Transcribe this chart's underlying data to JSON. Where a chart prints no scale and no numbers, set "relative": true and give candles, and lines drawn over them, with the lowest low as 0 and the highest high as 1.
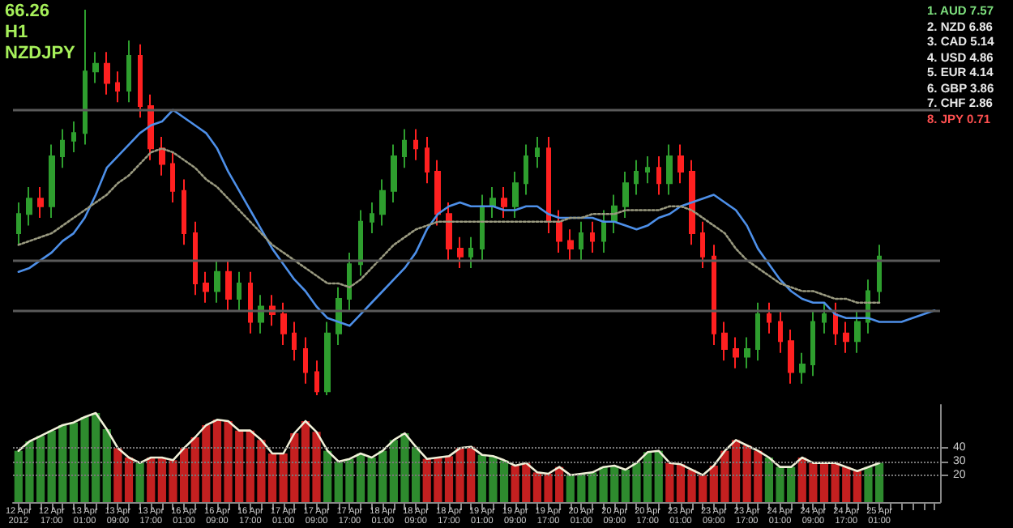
{
  "chart_data": [
    {
      "type": "candlestick",
      "title": "66.26",
      "subtitle": "H1",
      "relative": true,
      "tick_labels": false,
      "grid": false,
      "annotations": [
        "NZDJPY",
        "1. AUD 7.57",
        "2. NZD 6.86",
        "3. CAD 5.14",
        "4. USD 4.86",
        "5. EUR 4.14",
        "6. GBP 3.86",
        "7. CHF 2.86",
        "8. JPY 0.71"
      ],
      "categories": [
        "12 Apr 2012",
        null,
        null,
        "12 Apr 17:00",
        null,
        null,
        "13 Apr 01:00",
        null,
        null,
        "13 Apr 09:00",
        null,
        null,
        "13 Apr 17:00",
        null,
        null,
        "16 Apr 01:00",
        null,
        null,
        "16 Apr 09:00",
        null,
        null,
        "16 Apr 17:00",
        null,
        null,
        "17 Apr 01:00",
        null,
        null,
        "17 Apr 09:00",
        null,
        null,
        "17 Apr 17:00",
        null,
        null,
        "18 Apr 01:00",
        null,
        null,
        "18 Apr 09:00",
        null,
        null,
        "18 Apr 17:00",
        null,
        null,
        "19 Apr 01:00",
        null,
        null,
        "19 Apr 09:00",
        null,
        null,
        "19 Apr 17:00",
        null,
        null,
        "20 Apr 01:00",
        null,
        null,
        "20 Apr 09:00",
        null,
        null,
        "20 Apr 17:00",
        null,
        null,
        "23 Apr 01:00",
        null,
        null,
        "23 Apr 09:00",
        null,
        null,
        "23 Apr 17:00",
        null,
        null,
        "24 Apr 01:00",
        null,
        null,
        "24 Apr 09:00",
        null,
        null,
        "24 Apr 17:00",
        null,
        null,
        "25 Apr 01:00",
        null,
        null,
        null,
        null,
        null
      ],
      "ref_lines": [
        {
          "axis": "y",
          "value": 0.74,
          "color": "#5a5a5a"
        },
        {
          "axis": "y",
          "value": 0.35,
          "color": "#5a5a5a"
        },
        {
          "axis": "y",
          "value": 0.22,
          "color": "#5a5a5a"
        }
      ],
      "series": [
        {
          "ohlc": [
            [
              0.42,
              0.5,
              0.39,
              0.47
            ],
            [
              0.47,
              0.54,
              0.44,
              0.51
            ],
            [
              0.51,
              0.54,
              0.46,
              0.49
            ],
            [
              0.49,
              0.65,
              0.46,
              0.62
            ],
            [
              0.62,
              0.69,
              0.59,
              0.66
            ],
            [
              0.66,
              0.71,
              0.63,
              0.68
            ],
            [
              0.68,
              1,
              0.65,
              0.84
            ],
            [
              0.84,
              0.89,
              0.81,
              0.86
            ],
            [
              0.86,
              0.89,
              0.78,
              0.81
            ],
            [
              0.81,
              0.84,
              0.76,
              0.79
            ],
            [
              0.79,
              0.92,
              0.76,
              0.88
            ],
            [
              0.88,
              0.91,
              0.72,
              0.75
            ],
            [
              0.75,
              0.78,
              0.61,
              0.64
            ],
            [
              0.64,
              0.67,
              0.57,
              0.6
            ],
            [
              0.6,
              0.63,
              0.5,
              0.53
            ],
            [
              0.53,
              0.56,
              0.39,
              0.42
            ],
            [
              0.42,
              0.45,
              0.26,
              0.29
            ],
            [
              0.29,
              0.32,
              0.24,
              0.27
            ],
            [
              0.27,
              0.35,
              0.24,
              0.32
            ],
            [
              0.32,
              0.35,
              0.22,
              0.25
            ],
            [
              0.25,
              0.32,
              0.22,
              0.29
            ],
            [
              0.29,
              0.32,
              0.16,
              0.19
            ],
            [
              0.19,
              0.26,
              0.16,
              0.23
            ],
            [
              0.23,
              0.26,
              0.18,
              0.21
            ],
            [
              0.21,
              0.24,
              0.13,
              0.16
            ],
            [
              0.16,
              0.19,
              0.09,
              0.12
            ],
            [
              0.12,
              0.15,
              0.03,
              0.06
            ],
            [
              0.06,
              0.09,
              0,
              0.01
            ],
            [
              0.01,
              0.19,
              0,
              0.16
            ],
            [
              0.16,
              0.28,
              0.13,
              0.25
            ],
            [
              0.25,
              0.37,
              0.22,
              0.34
            ],
            [
              0.34,
              0.48,
              0.31,
              0.45
            ],
            [
              0.45,
              0.5,
              0.42,
              0.47
            ],
            [
              0.47,
              0.56,
              0.44,
              0.53
            ],
            [
              0.53,
              0.65,
              0.5,
              0.62
            ],
            [
              0.62,
              0.69,
              0.59,
              0.66
            ],
            [
              0.66,
              0.69,
              0.61,
              0.64
            ],
            [
              0.64,
              0.67,
              0.55,
              0.58
            ],
            [
              0.58,
              0.61,
              0.44,
              0.47
            ],
            [
              0.47,
              0.5,
              0.35,
              0.38
            ],
            [
              0.38,
              0.41,
              0.33,
              0.36
            ],
            [
              0.36,
              0.41,
              0.33,
              0.38
            ],
            [
              0.38,
              0.52,
              0.35,
              0.49
            ],
            [
              0.49,
              0.54,
              0.46,
              0.51
            ],
            [
              0.51,
              0.54,
              0.46,
              0.49
            ],
            [
              0.49,
              0.58,
              0.46,
              0.55
            ],
            [
              0.55,
              0.65,
              0.52,
              0.62
            ],
            [
              0.62,
              0.67,
              0.59,
              0.64
            ],
            [
              0.64,
              0.67,
              0.42,
              0.45
            ],
            [
              0.45,
              0.48,
              0.37,
              0.4
            ],
            [
              0.4,
              0.43,
              0.35,
              0.38
            ],
            [
              0.38,
              0.45,
              0.35,
              0.42
            ],
            [
              0.42,
              0.45,
              0.37,
              0.4
            ],
            [
              0.4,
              0.48,
              0.37,
              0.45
            ],
            [
              0.45,
              0.52,
              0.42,
              0.49
            ],
            [
              0.49,
              0.58,
              0.46,
              0.55
            ],
            [
              0.55,
              0.61,
              0.52,
              0.58
            ],
            [
              0.58,
              0.62,
              0.55,
              0.59
            ],
            [
              0.59,
              0.62,
              0.52,
              0.55
            ],
            [
              0.55,
              0.65,
              0.52,
              0.62
            ],
            [
              0.62,
              0.65,
              0.55,
              0.58
            ],
            [
              0.58,
              0.61,
              0.39,
              0.42
            ],
            [
              0.42,
              0.45,
              0.33,
              0.36
            ],
            [
              0.36,
              0.39,
              0.13,
              0.16
            ],
            [
              0.16,
              0.19,
              0.09,
              0.12
            ],
            [
              0.12,
              0.15,
              0.07,
              0.1
            ],
            [
              0.1,
              0.15,
              0.07,
              0.12
            ],
            [
              0.12,
              0.24,
              0.09,
              0.21
            ],
            [
              0.21,
              0.24,
              0.16,
              0.19
            ],
            [
              0.19,
              0.22,
              0.11,
              0.14
            ],
            [
              0.14,
              0.17,
              0.03,
              0.06
            ],
            [
              0.06,
              0.11,
              0.03,
              0.08
            ],
            [
              0.08,
              0.22,
              0.05,
              0.19
            ],
            [
              0.19,
              0.24,
              0.16,
              0.21
            ],
            [
              0.21,
              0.24,
              0.13,
              0.16
            ],
            [
              0.16,
              0.19,
              0.11,
              0.14
            ],
            [
              0.14,
              0.22,
              0.11,
              0.19
            ],
            [
              0.19,
              0.3,
              0.16,
              0.27
            ],
            [
              0.27,
              0.39,
              0.24,
              0.36
            ],
            null,
            null,
            null,
            null,
            null
          ],
          "colors": [
            "#2e9e2e",
            "#2e9e2e",
            "#ff2020",
            "#2e9e2e",
            "#2e9e2e",
            "#2e9e2e",
            "#2e9e2e",
            "#2e9e2e",
            "#ff2020",
            "#ff2020",
            "#2e9e2e",
            "#ff2020",
            "#ff2020",
            "#ff2020",
            "#ff2020",
            "#ff2020",
            "#ff2020",
            "#ff2020",
            "#2e9e2e",
            "#ff2020",
            "#2e9e2e",
            "#ff2020",
            "#2e9e2e",
            "#ff2020",
            "#ff2020",
            "#ff2020",
            "#ff2020",
            "#ff2020",
            "#2e9e2e",
            "#2e9e2e",
            "#2e9e2e",
            "#2e9e2e",
            "#2e9e2e",
            "#2e9e2e",
            "#2e9e2e",
            "#2e9e2e",
            "#ff2020",
            "#ff2020",
            "#ff2020",
            "#ff2020",
            "#ff2020",
            "#2e9e2e",
            "#2e9e2e",
            "#2e9e2e",
            "#ff2020",
            "#2e9e2e",
            "#2e9e2e",
            "#2e9e2e",
            "#ff2020",
            "#ff2020",
            "#ff2020",
            "#2e9e2e",
            "#ff2020",
            "#2e9e2e",
            "#2e9e2e",
            "#2e9e2e",
            "#2e9e2e",
            "#2e9e2e",
            "#ff2020",
            "#2e9e2e",
            "#ff2020",
            "#ff2020",
            "#ff2020",
            "#ff2020",
            "#ff2020",
            "#ff2020",
            "#2e9e2e",
            "#2e9e2e",
            "#ff2020",
            "#ff2020",
            "#ff2020",
            "#2e9e2e",
            "#2e9e2e",
            "#2e9e2e",
            "#ff2020",
            "#ff2020",
            "#2e9e2e",
            "#2e9e2e",
            "#2e9e2e",
            null,
            null,
            null,
            null,
            null
          ]
        },
        {
          "type": "line",
          "color": "#4d8fe8",
          "values": [
            0.32,
            0.33,
            0.35,
            0.37,
            0.4,
            0.42,
            0.46,
            0.52,
            0.59,
            0.62,
            0.65,
            0.68,
            0.7,
            0.71,
            0.74,
            0.72,
            0.7,
            0.68,
            0.64,
            0.58,
            0.53,
            0.48,
            0.43,
            0.38,
            0.34,
            0.3,
            0.27,
            0.23,
            0.2,
            0.19,
            0.18,
            0.21,
            0.24,
            0.27,
            0.3,
            0.33,
            0.37,
            0.43,
            0.47,
            0.49,
            0.5,
            0.49,
            0.49,
            0.49,
            0.48,
            0.48,
            0.49,
            0.49,
            0.47,
            0.46,
            0.46,
            0.46,
            0.46,
            0.45,
            0.45,
            0.44,
            0.43,
            0.44,
            0.46,
            0.47,
            0.49,
            0.5,
            0.51,
            0.52,
            0.5,
            0.48,
            0.44,
            0.38,
            0.34,
            0.3,
            0.27,
            0.25,
            0.24,
            0.24,
            0.21,
            0.2,
            0.2,
            0.2,
            0.19,
            0.19,
            0.19,
            0.2,
            0.21,
            0.22
          ]
        },
        {
          "type": "line",
          "color": "#9a9a80",
          "line_style": "dotted",
          "values": [
            0.39,
            0.4,
            0.41,
            0.42,
            0.44,
            0.46,
            0.48,
            0.5,
            0.52,
            0.55,
            0.57,
            0.6,
            0.63,
            0.64,
            0.63,
            0.61,
            0.59,
            0.56,
            0.54,
            0.51,
            0.48,
            0.45,
            0.42,
            0.39,
            0.37,
            0.35,
            0.33,
            0.31,
            0.29,
            0.29,
            0.28,
            0.3,
            0.33,
            0.36,
            0.39,
            0.41,
            0.43,
            0.44,
            0.45,
            0.45,
            0.45,
            0.45,
            0.45,
            0.45,
            0.45,
            0.45,
            0.45,
            0.45,
            0.45,
            0.45,
            0.46,
            0.46,
            0.47,
            0.47,
            0.47,
            0.48,
            0.48,
            0.48,
            0.48,
            0.49,
            0.49,
            0.48,
            0.46,
            0.44,
            0.42,
            0.38,
            0.35,
            0.33,
            0.31,
            0.29,
            0.28,
            0.27,
            0.27,
            0.26,
            0.25,
            0.25,
            0.24,
            0.24,
            0.24,
            null,
            null,
            null,
            null,
            null
          ]
        }
      ]
    },
    {
      "type": "bar",
      "ylim": [
        0,
        72
      ],
      "yticks": [
        20,
        30,
        40
      ],
      "grid": "y",
      "categories": [
        "12 Apr 2012",
        null,
        null,
        "12 Apr 17:00",
        null,
        null,
        "13 Apr 01:00",
        null,
        null,
        "13 Apr 09:00",
        null,
        null,
        "13 Apr 17:00",
        null,
        null,
        "16 Apr 01:00",
        null,
        null,
        "16 Apr 09:00",
        null,
        null,
        "16 Apr 17:00",
        null,
        null,
        "17 Apr 01:00",
        null,
        null,
        "17 Apr 09:00",
        null,
        null,
        "17 Apr 17:00",
        null,
        null,
        "18 Apr 01:00",
        null,
        null,
        "18 Apr 09:00",
        null,
        null,
        "18 Apr 17:00",
        null,
        null,
        "19 Apr 01:00",
        null,
        null,
        "19 Apr 09:00",
        null,
        null,
        "19 Apr 17:00",
        null,
        null,
        "20 Apr 01:00",
        null,
        null,
        "20 Apr 09:00",
        null,
        null,
        "20 Apr 17:00",
        null,
        null,
        "23 Apr 01:00",
        null,
        null,
        "23 Apr 09:00",
        null,
        null,
        "23 Apr 17:00",
        null,
        null,
        "24 Apr 01:00",
        null,
        null,
        "24 Apr 09:00",
        null,
        null,
        "24 Apr 17:00",
        null,
        null,
        "25 Apr 01:00",
        null,
        null,
        null,
        null,
        null
      ],
      "series": [
        {
          "values": [
            38,
            45,
            49,
            53,
            57,
            59,
            63,
            66,
            54,
            40,
            33,
            29,
            33,
            33,
            31,
            40,
            48,
            57,
            61,
            60,
            53,
            53,
            46,
            36,
            36,
            51,
            60,
            52,
            38,
            30,
            32,
            36,
            33,
            38,
            46,
            51,
            41,
            32,
            33,
            34,
            40,
            41,
            35,
            34,
            31,
            27,
            29,
            22,
            21,
            26,
            20,
            21,
            22,
            26,
            27,
            24,
            29,
            37,
            38,
            29,
            28,
            24,
            20,
            27,
            38,
            46,
            42,
            38,
            33,
            26,
            26,
            33,
            29,
            29,
            29,
            26,
            23,
            26,
            29,
            null,
            null,
            null,
            null,
            null
          ],
          "colors": [
            "#2e8b2e",
            "#2e8b2e",
            "#2e8b2e",
            "#2e8b2e",
            "#2e8b2e",
            "#2e8b2e",
            "#2e8b2e",
            "#2e8b2e",
            "#2e8b2e",
            "#c42020",
            "#c42020",
            "#2e8b2e",
            "#c42020",
            "#c42020",
            "#c42020",
            "#c42020",
            "#c42020",
            "#c42020",
            "#c42020",
            "#c42020",
            "#c42020",
            "#c42020",
            "#c42020",
            "#c42020",
            "#c42020",
            "#c42020",
            "#c42020",
            "#c42020",
            "#2e8b2e",
            "#2e8b2e",
            "#2e8b2e",
            "#2e8b2e",
            "#2e8b2e",
            "#2e8b2e",
            "#2e8b2e",
            "#2e8b2e",
            "#2e8b2e",
            "#c42020",
            "#c42020",
            "#c42020",
            "#c42020",
            "#c42020",
            "#2e8b2e",
            "#2e8b2e",
            "#2e8b2e",
            "#c42020",
            "#c42020",
            "#c42020",
            "#c42020",
            "#c42020",
            "#2e8b2e",
            "#2e8b2e",
            "#2e8b2e",
            "#2e8b2e",
            "#2e8b2e",
            "#2e8b2e",
            "#2e8b2e",
            "#2e8b2e",
            "#2e8b2e",
            "#c42020",
            "#c42020",
            "#c42020",
            "#c42020",
            "#c42020",
            "#c42020",
            "#c42020",
            "#c42020",
            "#c42020",
            "#2e8b2e",
            "#2e8b2e",
            "#2e8b2e",
            "#c42020",
            "#c42020",
            "#c42020",
            "#c42020",
            "#c42020",
            "#c42020",
            "#2e8b2e",
            "#2e8b2e",
            null,
            null,
            null,
            null,
            null
          ]
        },
        {
          "type": "line",
          "color": "#f0f0d8",
          "values": [
            38,
            45,
            49,
            53,
            57,
            59,
            63,
            66,
            54,
            40,
            33,
            29,
            33,
            33,
            31,
            40,
            48,
            57,
            61,
            60,
            53,
            53,
            46,
            36,
            36,
            51,
            60,
            52,
            38,
            30,
            32,
            36,
            33,
            38,
            46,
            51,
            41,
            32,
            33,
            34,
            40,
            41,
            35,
            34,
            31,
            27,
            29,
            22,
            21,
            26,
            20,
            21,
            22,
            26,
            27,
            24,
            29,
            37,
            38,
            29,
            28,
            24,
            20,
            27,
            38,
            46,
            42,
            38,
            33,
            26,
            26,
            33,
            29,
            29,
            29,
            26,
            23,
            26,
            29,
            null,
            null,
            null,
            null,
            null
          ]
        }
      ]
    }
  ]
}
